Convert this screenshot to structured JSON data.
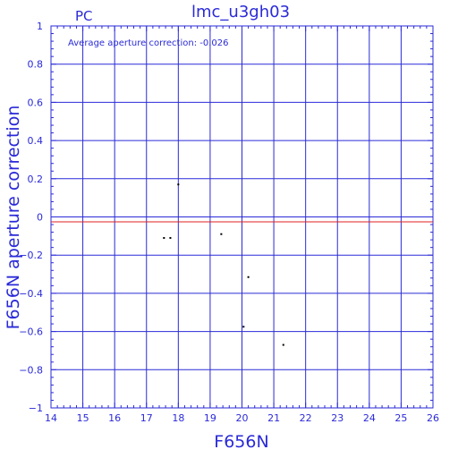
{
  "header": {
    "corner_label": "PC",
    "title": "lmc_u3gh03"
  },
  "annotation": "Average aperture correction: -0.026",
  "colors": {
    "axes": "#2a2ad8",
    "reference_line": "#e02020",
    "points": "#000000",
    "background": "#ffffff"
  },
  "chart_data": {
    "type": "scatter",
    "title": "lmc_u3gh03",
    "xlabel": "F656N",
    "ylabel": "F656N aperture correction",
    "xlim": [
      14,
      26
    ],
    "ylim": [
      -1,
      1
    ],
    "x_ticks": [
      14,
      15,
      16,
      17,
      18,
      19,
      20,
      21,
      22,
      23,
      24,
      25,
      26
    ],
    "y_ticks": [
      -1,
      -0.8,
      -0.6,
      -0.4,
      -0.2,
      0,
      0.2,
      0.4,
      0.6,
      0.8,
      1
    ],
    "x_tick_labels": [
      "14",
      "15",
      "16",
      "17",
      "18",
      "19",
      "20",
      "21",
      "22",
      "23",
      "24",
      "25",
      "26"
    ],
    "y_tick_labels": [
      "−1",
      "−0.8",
      "−0.6",
      "−0.4",
      "−0.2",
      "0",
      "0.2",
      "0.4",
      "0.6",
      "0.8",
      "1"
    ],
    "grid": true,
    "reference_line": {
      "y": -0.026
    },
    "points": [
      {
        "x": 18.0,
        "y": 0.17
      },
      {
        "x": 17.55,
        "y": -0.11
      },
      {
        "x": 17.75,
        "y": -0.11
      },
      {
        "x": 19.35,
        "y": -0.09
      },
      {
        "x": 20.2,
        "y": -0.315
      },
      {
        "x": 20.05,
        "y": -0.575
      },
      {
        "x": 21.3,
        "y": -0.67
      }
    ]
  }
}
